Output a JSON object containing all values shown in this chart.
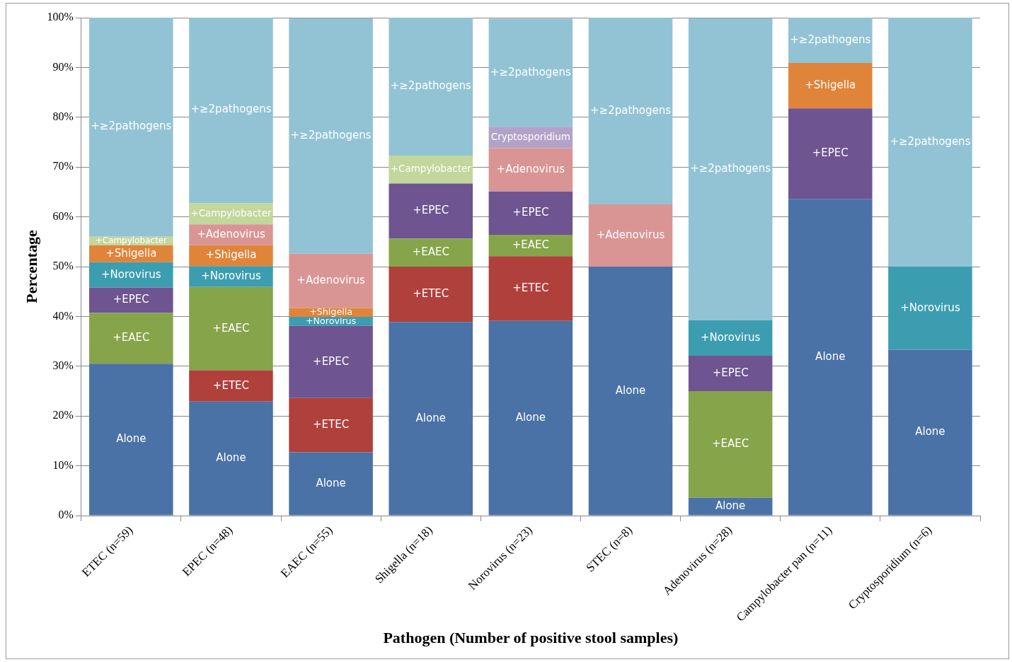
{
  "chart_data": {
    "type": "bar",
    "stacked": true,
    "xlabel": "Pathogen (Number of positive stool samples)",
    "ylabel": "Percentage",
    "categories": [
      "ETEC (n=59)",
      "EPEC (n=48)",
      "EAEC (n=55)",
      "Shigella (n=18)",
      "Norovirus (n=23)",
      "STEC (n=8)",
      "Adenovirus (n=28)",
      "Campylobacter pan (n=11)",
      "Cryptosporidium (n=6)"
    ],
    "series": [
      {
        "name": "Alone",
        "color": "#4a72a6",
        "values": [
          30.5,
          22.9,
          12.7,
          38.9,
          39.1,
          50,
          3.6,
          63.6,
          33.3
        ]
      },
      {
        "name": "+ETEC",
        "color": "#b0403c",
        "values": [
          null,
          6.3,
          10.9,
          11.1,
          13.0,
          null,
          null,
          null,
          null
        ]
      },
      {
        "name": "+EAEC",
        "color": "#86a44a",
        "values": [
          10.2,
          16.7,
          null,
          5.6,
          4.3,
          null,
          21.4,
          null,
          null
        ]
      },
      {
        "name": "+EPEC",
        "color": "#6e5490",
        "values": [
          5.1,
          null,
          14.5,
          11.1,
          8.7,
          null,
          7.1,
          18.2,
          null
        ]
      },
      {
        "name": "+Norovirus",
        "color": "#3c9db0",
        "values": [
          5.1,
          4.2,
          1.8,
          null,
          null,
          null,
          7.1,
          null,
          16.7
        ]
      },
      {
        "name": "+Shigella",
        "color": "#e0843a",
        "values": [
          3.4,
          4.2,
          1.8,
          null,
          null,
          null,
          null,
          9.1,
          null
        ]
      },
      {
        "name": "+Adenovirus",
        "color": "#d99594",
        "values": [
          null,
          4.2,
          10.9,
          null,
          8.7,
          12.5,
          null,
          null,
          null
        ]
      },
      {
        "name": "+Campylobacter",
        "color": "#c3d69b",
        "values": [
          1.7,
          4.2,
          null,
          5.6,
          null,
          null,
          null,
          null,
          null
        ]
      },
      {
        "name": "Cryptosporidium",
        "color": "#b3a2c7",
        "values": [
          null,
          null,
          null,
          null,
          4.3,
          null,
          null,
          null,
          null
        ]
      },
      {
        "name": "+≥2pathogens",
        "color": "#92c3d5",
        "values": [
          44.1,
          37.5,
          47.3,
          27.8,
          21.7,
          37.5,
          60.7,
          9.1,
          50
        ]
      }
    ],
    "ylim": [
      0,
      100
    ],
    "yticks": [
      {
        "value": 0,
        "label": "0%"
      },
      {
        "value": 10,
        "label": "10%"
      },
      {
        "value": 20,
        "label": "20%"
      },
      {
        "value": 30,
        "label": "30%"
      },
      {
        "value": 40,
        "label": "40%"
      },
      {
        "value": 50,
        "label": "50%"
      },
      {
        "value": 60,
        "label": "60%"
      },
      {
        "value": 70,
        "label": "70%"
      },
      {
        "value": 80,
        "label": "80%"
      },
      {
        "value": 90,
        "label": "90%"
      },
      {
        "value": 100,
        "label": "100%"
      }
    ],
    "grid": "y",
    "legend": false
  }
}
